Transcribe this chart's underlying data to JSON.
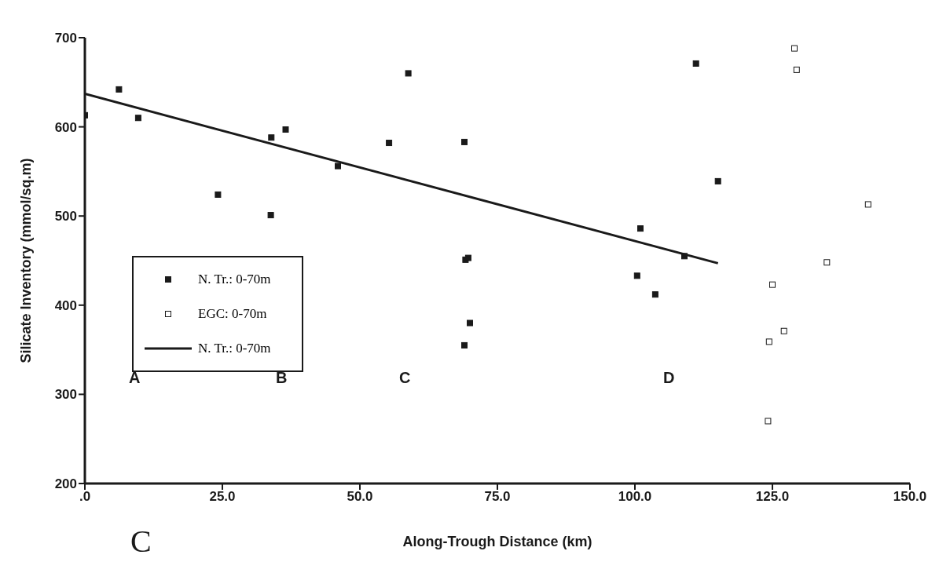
{
  "chart_data": {
    "type": "scatter",
    "xlabel": "Along-Trough Distance (km)",
    "ylabel": "Silicate Inventory (mmol/sq.m)",
    "xlim": [
      0,
      150
    ],
    "ylim": [
      200,
      700
    ],
    "xticks": [
      {
        "value": 0,
        "label": ".0"
      },
      {
        "value": 25,
        "label": "25.0"
      },
      {
        "value": 50,
        "label": "50.0"
      },
      {
        "value": 75,
        "label": "75.0"
      },
      {
        "value": 100,
        "label": "100.0"
      },
      {
        "value": 125,
        "label": "125.0"
      },
      {
        "value": 150,
        "label": "150.0"
      }
    ],
    "yticks": [
      200,
      300,
      400,
      500,
      600,
      700
    ],
    "grid": false,
    "legend": "left",
    "marker": "square",
    "series": [
      {
        "name": "N. Tr.: 0-70m",
        "color": "#1a1a1a",
        "x": [
          0,
          6.2,
          9.7,
          24.2,
          33.9,
          36.5,
          33.8,
          46,
          55.3,
          58.8,
          69,
          69.2,
          69.7,
          70,
          69,
          111.1,
          115.1,
          101,
          109,
          100.4,
          103.7
        ],
        "values": [
          613,
          642,
          610,
          524,
          588,
          597,
          501,
          556,
          582,
          660,
          583,
          451,
          453,
          380,
          355,
          671,
          539,
          486,
          455,
          433,
          412
        ]
      },
      {
        "name": "EGC: 0-70m",
        "color": "#ffffff",
        "x": [
          129,
          129.4,
          142.4,
          134.9,
          125,
          127.1,
          124.4,
          124.2
        ],
        "values": [
          688,
          664,
          513,
          448,
          423,
          371,
          359,
          270
        ]
      },
      {
        "name": "N. Tr.: 0-70m",
        "type": "line",
        "color": "#1a1a1a",
        "marker": "none",
        "line_style": "solid",
        "x": [
          0,
          115.1
        ],
        "values": [
          637,
          447
        ]
      }
    ],
    "annotations": [
      "A",
      "B",
      "C",
      "D",
      "C"
    ]
  }
}
